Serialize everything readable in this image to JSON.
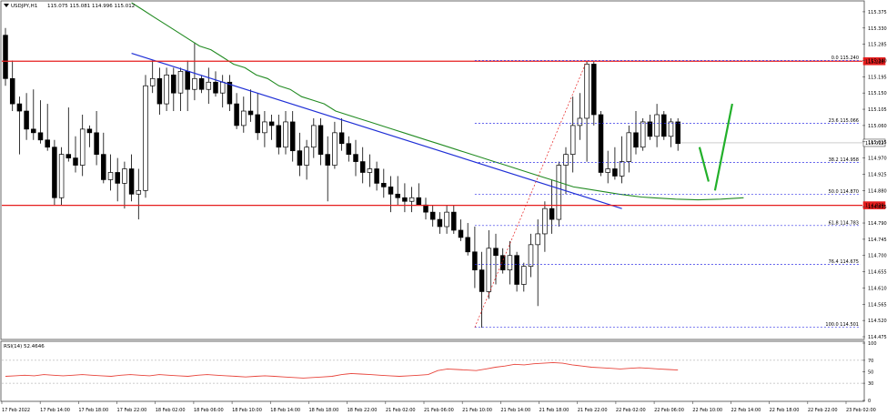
{
  "header": {
    "symbol": "USDJPY,H1",
    "ohlc": "115.075 115.081 114.996 115.012"
  },
  "rsi_header": "RSI(14) 52.4646",
  "colors": {
    "bull_body": "#ffffff",
    "bear_body": "#000000",
    "ma": "#228B22",
    "trendline": "#1f2fd6",
    "horizontal_level": "#e61e1e",
    "fib": "#2c2ce6",
    "rsi": "#e8453c",
    "price_tag": "#e61e1e",
    "current_tag": "#ffffff",
    "arrow": "#22b02a"
  },
  "price_levels": {
    "resistance_label": "115.238",
    "support_label": "114.839",
    "current_label": "115.012"
  },
  "fib_levels": [
    {
      "ratio": "0.0",
      "price": "115.240",
      "label": "0.0 115.240"
    },
    {
      "ratio": "23.6",
      "price": "115.066",
      "label": "23.6 115.066"
    },
    {
      "ratio": "38.2",
      "price": "114.958",
      "label": "38.2 114.958"
    },
    {
      "ratio": "50.0",
      "price": "114.870",
      "label": "50.0 114.870"
    },
    {
      "ratio": "61.8",
      "price": "114.783",
      "label": "61.8 114.783"
    },
    {
      "ratio": "76.4",
      "price": "114.675",
      "label": "76.4 114.675"
    },
    {
      "ratio": "100.0",
      "price": "114.501",
      "label": "100.0 114.501"
    }
  ],
  "chart_data": {
    "type": "candlestick",
    "yaxis_ticks": [
      "115.375",
      "115.330",
      "115.285",
      "115.240",
      "115.195",
      "115.150",
      "115.105",
      "115.060",
      "115.015",
      "114.970",
      "114.925",
      "114.880",
      "114.835",
      "114.790",
      "114.745",
      "114.700",
      "114.655",
      "114.610",
      "114.565",
      "114.520",
      "114.475"
    ],
    "ylim": [
      114.47,
      115.4
    ],
    "rsi_ticks": [
      "100",
      "70",
      "50",
      "30",
      "0"
    ],
    "rsi_ylim": [
      0,
      100
    ],
    "xaxis_ticks": [
      "17 Feb 2022",
      "17 Feb 14:00",
      "17 Feb 18:00",
      "17 Feb 22:00",
      "18 Feb 02:00",
      "18 Feb 06:00",
      "18 Feb 10:00",
      "18 Feb 14:00",
      "18 Feb 18:00",
      "18 Feb 22:00",
      "21 Feb 02:00",
      "21 Feb 06:00",
      "21 Feb 10:00",
      "21 Feb 14:00",
      "21 Feb 18:00",
      "21 Feb 22:00",
      "22 Feb 02:00",
      "22 Feb 06:00",
      "22 Feb 10:00",
      "22 Feb 14:00",
      "22 Feb 18:00",
      "22 Feb 22:00",
      "23 Feb 02:00"
    ],
    "candles": [
      [
        115.31,
        115.33,
        115.17,
        115.19
      ],
      [
        115.19,
        115.24,
        115.1,
        115.12
      ],
      [
        115.12,
        115.14,
        114.98,
        115.1
      ],
      [
        115.1,
        115.15,
        115.02,
        115.05
      ],
      [
        115.05,
        115.16,
        115.02,
        115.04
      ],
      [
        115.04,
        115.13,
        115.01,
        115.02
      ],
      [
        115.02,
        115.12,
        114.99,
        115.0
      ],
      [
        115.0,
        115.02,
        114.84,
        114.86
      ],
      [
        114.86,
        115.0,
        114.84,
        114.98
      ],
      [
        114.98,
        115.11,
        114.96,
        114.97
      ],
      [
        114.97,
        115.03,
        114.93,
        114.95
      ],
      [
        114.95,
        115.09,
        114.92,
        115.05
      ],
      [
        115.05,
        115.06,
        115.0,
        115.04
      ],
      [
        115.04,
        115.1,
        114.95,
        114.98
      ],
      [
        114.98,
        115.04,
        114.9,
        114.91
      ],
      [
        114.91,
        114.98,
        114.88,
        114.93
      ],
      [
        114.93,
        114.97,
        114.85,
        114.9
      ],
      [
        114.9,
        114.96,
        114.83,
        114.94
      ],
      [
        114.94,
        114.98,
        114.85,
        114.87
      ],
      [
        114.87,
        114.94,
        114.8,
        114.88
      ],
      [
        114.88,
        115.2,
        114.86,
        115.17
      ],
      [
        115.17,
        115.24,
        115.15,
        115.19
      ],
      [
        115.19,
        115.22,
        115.09,
        115.12
      ],
      [
        115.12,
        115.22,
        115.1,
        115.2
      ],
      [
        115.2,
        115.22,
        115.1,
        115.15
      ],
      [
        115.15,
        115.22,
        115.1,
        115.21
      ],
      [
        115.21,
        115.24,
        115.1,
        115.16
      ],
      [
        115.16,
        115.29,
        115.13,
        115.19
      ],
      [
        115.19,
        115.2,
        115.15,
        115.16
      ],
      [
        115.16,
        115.22,
        115.12,
        115.18
      ],
      [
        115.18,
        115.21,
        115.14,
        115.15
      ],
      [
        115.15,
        115.2,
        115.11,
        115.18
      ],
      [
        115.18,
        115.2,
        115.1,
        115.12
      ],
      [
        115.12,
        115.15,
        115.05,
        115.06
      ],
      [
        115.06,
        115.14,
        115.04,
        115.1
      ],
      [
        115.1,
        115.16,
        115.07,
        115.09
      ],
      [
        115.09,
        115.15,
        115.02,
        115.04
      ],
      [
        115.04,
        115.1,
        115.0,
        115.07
      ],
      [
        115.07,
        115.09,
        115.02,
        115.06
      ],
      [
        115.06,
        115.09,
        114.98,
        115.0
      ],
      [
        115.0,
        115.1,
        114.98,
        115.07
      ],
      [
        115.07,
        115.1,
        114.96,
        114.99
      ],
      [
        114.99,
        115.04,
        114.92,
        114.95
      ],
      [
        114.95,
        115.02,
        114.91,
        115.0
      ],
      [
        115.0,
        115.08,
        114.97,
        115.06
      ],
      [
        115.06,
        115.08,
        114.95,
        114.98
      ],
      [
        114.98,
        115.03,
        114.85,
        114.95
      ],
      [
        114.95,
        115.07,
        114.94,
        115.04
      ],
      [
        115.04,
        115.08,
        114.99,
        115.01
      ],
      [
        115.01,
        115.03,
        114.96,
        114.98
      ],
      [
        114.98,
        115.02,
        114.92,
        114.96
      ],
      [
        114.96,
        115.0,
        114.9,
        114.93
      ],
      [
        114.93,
        114.98,
        114.89,
        114.94
      ],
      [
        114.94,
        114.96,
        114.88,
        114.9
      ],
      [
        114.9,
        114.94,
        114.86,
        114.89
      ],
      [
        114.89,
        114.92,
        114.82,
        114.87
      ],
      [
        114.87,
        114.92,
        114.84,
        114.86
      ],
      [
        114.86,
        114.9,
        114.82,
        114.85
      ],
      [
        114.85,
        114.89,
        114.82,
        114.86
      ],
      [
        114.86,
        114.9,
        114.84,
        114.84
      ],
      [
        114.84,
        114.86,
        114.8,
        114.82
      ],
      [
        114.82,
        114.84,
        114.78,
        114.8
      ],
      [
        114.8,
        114.82,
        114.76,
        114.78
      ],
      [
        114.78,
        114.84,
        114.76,
        114.82
      ],
      [
        114.82,
        114.84,
        114.76,
        114.77
      ],
      [
        114.77,
        114.8,
        114.74,
        114.75
      ],
      [
        114.75,
        114.79,
        114.7,
        114.71
      ],
      [
        114.71,
        114.78,
        114.61,
        114.66
      ],
      [
        114.66,
        114.71,
        114.5,
        114.6
      ],
      [
        114.6,
        114.77,
        114.58,
        114.72
      ],
      [
        114.72,
        114.76,
        114.62,
        114.7
      ],
      [
        114.7,
        114.72,
        114.65,
        114.66
      ],
      [
        114.66,
        114.74,
        114.62,
        114.7
      ],
      [
        114.7,
        114.71,
        114.6,
        114.62
      ],
      [
        114.62,
        114.68,
        114.6,
        114.67
      ],
      [
        114.67,
        114.76,
        114.64,
        114.73
      ],
      [
        114.73,
        114.8,
        114.56,
        114.76
      ],
      [
        114.76,
        114.85,
        114.71,
        114.83
      ],
      [
        114.83,
        114.91,
        114.76,
        114.8
      ],
      [
        114.8,
        114.96,
        114.78,
        114.95
      ],
      [
        114.95,
        115.0,
        114.87,
        114.98
      ],
      [
        114.98,
        115.14,
        114.93,
        115.06
      ],
      [
        115.06,
        115.15,
        115.02,
        115.08
      ],
      [
        115.08,
        115.24,
        114.96,
        115.23
      ],
      [
        115.23,
        115.24,
        115.06,
        115.09
      ],
      [
        115.09,
        115.1,
        114.92,
        114.93
      ],
      [
        114.93,
        114.99,
        114.9,
        114.94
      ],
      [
        114.94,
        115.0,
        114.91,
        114.92
      ],
      [
        114.92,
        115.03,
        114.9,
        114.96
      ],
      [
        114.96,
        115.06,
        114.93,
        115.04
      ],
      [
        115.04,
        115.1,
        114.98,
        115.0
      ],
      [
        115.0,
        115.08,
        114.99,
        115.07
      ],
      [
        115.07,
        115.09,
        115.02,
        115.03
      ],
      [
        115.03,
        115.12,
        115.0,
        115.09
      ],
      [
        115.09,
        115.1,
        115.02,
        115.03
      ],
      [
        115.03,
        115.08,
        115.0,
        115.07
      ],
      [
        115.07,
        115.08,
        114.99,
        115.01
      ]
    ],
    "ma_series": [
      115.4,
      115.38,
      115.36,
      115.34,
      115.32,
      115.3,
      115.28,
      115.27,
      115.25,
      115.23,
      115.22,
      115.2,
      115.19,
      115.17,
      115.16,
      115.14,
      115.13,
      115.12,
      115.1,
      115.09,
      115.08,
      115.07,
      115.06,
      115.05,
      115.04,
      115.03,
      115.02,
      115.01,
      115.0,
      114.99,
      114.98,
      114.97,
      114.96,
      114.95,
      114.94,
      114.93,
      114.92,
      114.91,
      114.9,
      114.89,
      114.885,
      114.88,
      114.875,
      114.87,
      114.866,
      114.862,
      114.86,
      114.858,
      114.856,
      114.855,
      114.854,
      114.855,
      114.856,
      114.858,
      114.86
    ],
    "rsi_series": [
      42,
      43,
      44,
      43,
      45,
      44,
      43,
      44,
      45,
      44,
      43,
      42,
      44,
      45,
      44,
      43,
      45,
      44,
      43,
      42,
      44,
      45,
      44,
      43,
      42,
      41,
      42,
      43,
      42,
      41,
      40,
      39,
      40,
      41,
      42,
      45,
      47,
      46,
      45,
      44,
      43,
      42,
      43,
      44,
      45,
      52,
      55,
      54,
      53,
      52,
      55,
      58,
      60,
      63,
      62,
      64,
      65,
      66,
      65,
      62,
      60,
      58,
      57,
      56,
      55,
      56,
      57,
      56,
      55,
      54,
      53
    ],
    "arrows": [
      {
        "dir": "down",
        "from": [
          115.0,
          115.0
        ],
        "to": [
          114.93,
          114.93
        ]
      },
      {
        "dir": "up",
        "from": [
          114.88,
          114.88
        ],
        "to": [
          115.12,
          115.12
        ]
      }
    ]
  }
}
